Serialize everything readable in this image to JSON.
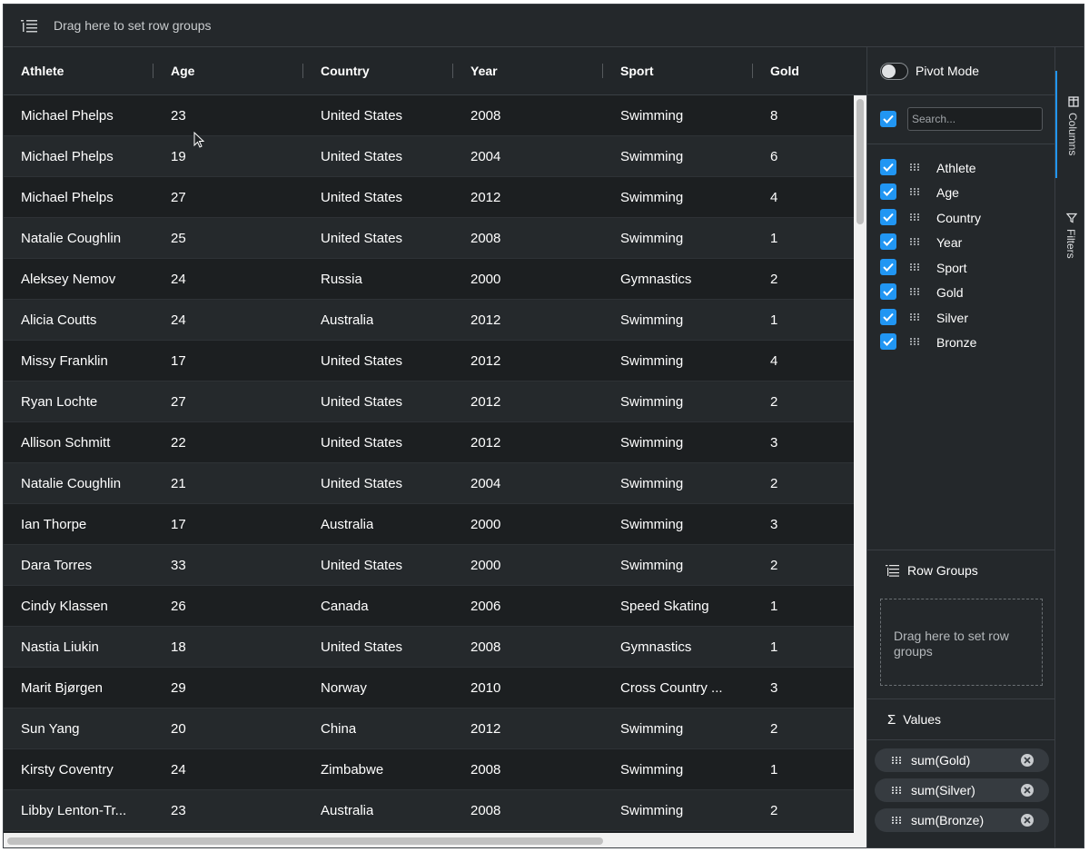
{
  "toolbar": {
    "row_group_hint": "Drag here to set row groups"
  },
  "columns": [
    "Athlete",
    "Age",
    "Country",
    "Year",
    "Sport",
    "Gold"
  ],
  "rows": [
    [
      "Michael Phelps",
      "23",
      "United States",
      "2008",
      "Swimming",
      "8"
    ],
    [
      "Michael Phelps",
      "19",
      "United States",
      "2004",
      "Swimming",
      "6"
    ],
    [
      "Michael Phelps",
      "27",
      "United States",
      "2012",
      "Swimming",
      "4"
    ],
    [
      "Natalie Coughlin",
      "25",
      "United States",
      "2008",
      "Swimming",
      "1"
    ],
    [
      "Aleksey Nemov",
      "24",
      "Russia",
      "2000",
      "Gymnastics",
      "2"
    ],
    [
      "Alicia Coutts",
      "24",
      "Australia",
      "2012",
      "Swimming",
      "1"
    ],
    [
      "Missy Franklin",
      "17",
      "United States",
      "2012",
      "Swimming",
      "4"
    ],
    [
      "Ryan Lochte",
      "27",
      "United States",
      "2012",
      "Swimming",
      "2"
    ],
    [
      "Allison Schmitt",
      "22",
      "United States",
      "2012",
      "Swimming",
      "3"
    ],
    [
      "Natalie Coughlin",
      "21",
      "United States",
      "2004",
      "Swimming",
      "2"
    ],
    [
      "Ian Thorpe",
      "17",
      "Australia",
      "2000",
      "Swimming",
      "3"
    ],
    [
      "Dara Torres",
      "33",
      "United States",
      "2000",
      "Swimming",
      "2"
    ],
    [
      "Cindy Klassen",
      "26",
      "Canada",
      "2006",
      "Speed Skating",
      "1"
    ],
    [
      "Nastia Liukin",
      "18",
      "United States",
      "2008",
      "Gymnastics",
      "1"
    ],
    [
      "Marit Bjørgen",
      "29",
      "Norway",
      "2010",
      "Cross Country ...",
      "3"
    ],
    [
      "Sun Yang",
      "20",
      "China",
      "2012",
      "Swimming",
      "2"
    ],
    [
      "Kirsty Coventry",
      "24",
      "Zimbabwe",
      "2008",
      "Swimming",
      "1"
    ],
    [
      "Libby Lenton-Tr...",
      "23",
      "Australia",
      "2008",
      "Swimming",
      "2"
    ]
  ],
  "tool_panel": {
    "pivot_mode_label": "Pivot Mode",
    "pivot_mode_on": false,
    "search_placeholder": "Search...",
    "column_list": [
      {
        "name": "Athlete",
        "checked": true
      },
      {
        "name": "Age",
        "checked": true
      },
      {
        "name": "Country",
        "checked": true
      },
      {
        "name": "Year",
        "checked": true
      },
      {
        "name": "Sport",
        "checked": true
      },
      {
        "name": "Gold",
        "checked": true
      },
      {
        "name": "Silver",
        "checked": true
      },
      {
        "name": "Bronze",
        "checked": true
      }
    ],
    "row_groups_label": "Row Groups",
    "row_groups_hint": "Drag here to set row groups",
    "values_label": "Values",
    "values_symbol": "Σ",
    "values": [
      "sum(Gold)",
      "sum(Silver)",
      "sum(Bronze)"
    ]
  },
  "side_tabs": [
    {
      "label": "Columns",
      "icon": "columns-icon",
      "active": true
    },
    {
      "label": "Filters",
      "icon": "filter-icon",
      "active": false
    }
  ],
  "colors": {
    "accent": "#2196f3",
    "background": "#1f2224",
    "row_even": "#1c1f21",
    "row_odd": "#25292c"
  }
}
